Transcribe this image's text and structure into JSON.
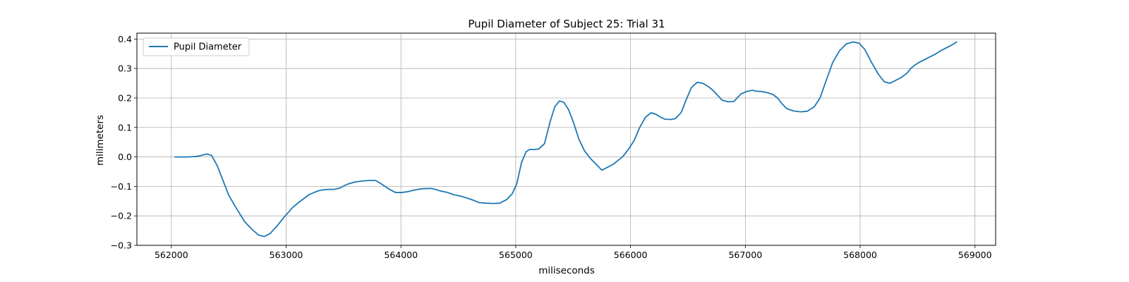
{
  "chart_data": {
    "type": "line",
    "title": "Pupil Diameter of Subject 25: Trial 31",
    "xlabel": "miliseconds",
    "ylabel": "milimeters",
    "xlim": [
      561700,
      569180
    ],
    "ylim": [
      -0.3,
      0.42
    ],
    "xticks": [
      562000,
      563000,
      564000,
      565000,
      566000,
      567000,
      568000,
      569000
    ],
    "xtick_labels": [
      "562000",
      "563000",
      "564000",
      "565000",
      "566000",
      "567000",
      "568000",
      "569000"
    ],
    "yticks": [
      -0.3,
      -0.2,
      -0.1,
      0.0,
      0.1,
      0.2,
      0.3,
      0.4
    ],
    "ytick_labels": [
      "−0.3",
      "−0.2",
      "−0.1",
      "0.0",
      "0.1",
      "0.2",
      "0.3",
      "0.4"
    ],
    "grid": true,
    "legend_position": "upper-left",
    "series": [
      {
        "name": "Pupil Diameter",
        "color": "#1f77b4",
        "x": [
          562030,
          562150,
          562230,
          562310,
          562350,
          562400,
          562450,
          562500,
          562560,
          562640,
          562700,
          562760,
          562810,
          562860,
          562920,
          562980,
          563060,
          563130,
          563200,
          563260,
          563300,
          563360,
          563420,
          563470,
          563530,
          563600,
          563660,
          563720,
          563780,
          563830,
          563900,
          563950,
          564000,
          564060,
          564120,
          564190,
          564260,
          564300,
          564340,
          564400,
          564460,
          564520,
          564580,
          564630,
          564680,
          564740,
          564800,
          564860,
          564920,
          564970,
          565010,
          565050,
          565090,
          565120,
          565160,
          565200,
          565250,
          565300,
          565340,
          565380,
          565420,
          565460,
          565500,
          565550,
          565600,
          565650,
          565700,
          565750,
          565800,
          565850,
          565880,
          565930,
          565980,
          566030,
          566080,
          566130,
          566180,
          566220,
          566260,
          566300,
          566350,
          566390,
          566440,
          566480,
          566530,
          566580,
          566630,
          566680,
          566720,
          566760,
          566800,
          566850,
          566900,
          566960,
          567010,
          567060,
          567100,
          567140,
          567190,
          567240,
          567280,
          567320,
          567360,
          567420,
          567480,
          567540,
          567600,
          567650,
          567700,
          567760,
          567820,
          567880,
          567940,
          567990,
          568040,
          568100,
          568160,
          568210,
          568260,
          568310,
          568360,
          568410,
          568440,
          568470,
          568510,
          568560,
          568610,
          568660,
          568700,
          568750,
          568800,
          568840
        ],
        "y": [
          0.0,
          0.0,
          0.002,
          0.01,
          0.005,
          -0.03,
          -0.08,
          -0.13,
          -0.17,
          -0.22,
          -0.245,
          -0.265,
          -0.27,
          -0.26,
          -0.235,
          -0.205,
          -0.17,
          -0.148,
          -0.128,
          -0.118,
          -0.113,
          -0.11,
          -0.11,
          -0.105,
          -0.093,
          -0.085,
          -0.082,
          -0.08,
          -0.08,
          -0.092,
          -0.11,
          -0.12,
          -0.121,
          -0.118,
          -0.112,
          -0.108,
          -0.107,
          -0.11,
          -0.115,
          -0.12,
          -0.128,
          -0.133,
          -0.14,
          -0.147,
          -0.155,
          -0.157,
          -0.158,
          -0.157,
          -0.145,
          -0.125,
          -0.09,
          -0.02,
          0.018,
          0.025,
          0.025,
          0.027,
          0.045,
          0.12,
          0.17,
          0.19,
          0.185,
          0.16,
          0.12,
          0.06,
          0.02,
          -0.005,
          -0.025,
          -0.045,
          -0.035,
          -0.025,
          -0.015,
          0.0,
          0.025,
          0.055,
          0.1,
          0.135,
          0.15,
          0.145,
          0.135,
          0.128,
          0.127,
          0.13,
          0.15,
          0.19,
          0.235,
          0.253,
          0.25,
          0.238,
          0.225,
          0.208,
          0.192,
          0.187,
          0.188,
          0.213,
          0.222,
          0.226,
          0.223,
          0.222,
          0.218,
          0.212,
          0.2,
          0.18,
          0.164,
          0.156,
          0.153,
          0.155,
          0.17,
          0.2,
          0.255,
          0.32,
          0.36,
          0.384,
          0.39,
          0.386,
          0.365,
          0.32,
          0.28,
          0.255,
          0.25,
          0.26,
          0.27,
          0.285,
          0.3,
          0.31,
          0.32,
          0.33,
          0.34,
          0.35,
          0.36,
          0.37,
          0.38,
          0.39
        ]
      }
    ]
  }
}
